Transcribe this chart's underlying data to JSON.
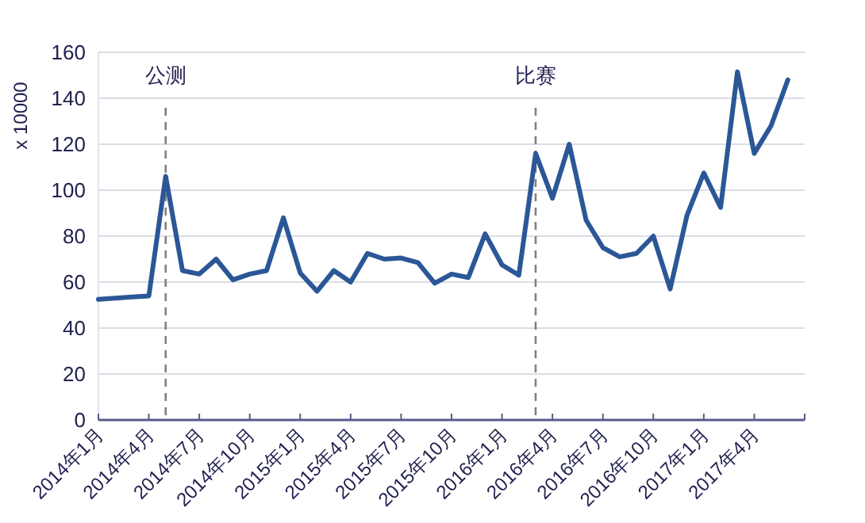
{
  "chart_data": {
    "type": "line",
    "ylabel": "x 10000",
    "x": [
      "2014-01",
      "2014-02",
      "2014-03",
      "2014-04",
      "2014-05",
      "2014-06",
      "2014-07",
      "2014-08",
      "2014-09",
      "2014-10",
      "2014-11",
      "2014-12",
      "2015-01",
      "2015-02",
      "2015-03",
      "2015-04",
      "2015-05",
      "2015-06",
      "2015-07",
      "2015-08",
      "2015-09",
      "2015-10",
      "2015-11",
      "2015-12",
      "2016-01",
      "2016-02",
      "2016-03",
      "2016-04",
      "2016-05",
      "2016-06",
      "2016-07",
      "2016-08",
      "2016-09",
      "2016-10",
      "2016-11",
      "2016-12",
      "2017-01",
      "2017-02",
      "2017-03",
      "2017-04",
      "2017-05",
      "2017-06"
    ],
    "series": [
      {
        "color": "#2b5797",
        "values": [
          52.5,
          53,
          53.5,
          54,
          106,
          65,
          63.5,
          70,
          61,
          63.5,
          65,
          88,
          64,
          56,
          65,
          60,
          72.5,
          70,
          70.5,
          68.5,
          59.5,
          63.5,
          62,
          81,
          67.5,
          63,
          116,
          96.5,
          120,
          87,
          75,
          71,
          72.5,
          80,
          57,
          89,
          107.5,
          92.5,
          151.5,
          116,
          128,
          148
        ]
      }
    ],
    "xlim": [
      "2014-01",
      "2017-07"
    ],
    "xticks": [
      {
        "value": "2014-01",
        "label": "2014年1月"
      },
      {
        "value": "2014-04",
        "label": "2014年4月"
      },
      {
        "value": "2014-07",
        "label": "2014年7月"
      },
      {
        "value": "2014-10",
        "label": "2014年10月"
      },
      {
        "value": "2015-01",
        "label": "2015年1月"
      },
      {
        "value": "2015-04",
        "label": "2015年4月"
      },
      {
        "value": "2015-07",
        "label": "2015年7月"
      },
      {
        "value": "2015-10",
        "label": "2015年10月"
      },
      {
        "value": "2016-01",
        "label": "2016年1月"
      },
      {
        "value": "2016-04",
        "label": "2016年4月"
      },
      {
        "value": "2016-07",
        "label": "2016年7月"
      },
      {
        "value": "2016-10",
        "label": "2016年10月"
      },
      {
        "value": "2017-01",
        "label": "2017年1月"
      },
      {
        "value": "2017-04",
        "label": "2017年4月"
      },
      {
        "value": "2017-07",
        "label": null
      }
    ],
    "ylim": [
      0,
      160
    ],
    "yticks": [
      0,
      20,
      40,
      60,
      80,
      100,
      120,
      140,
      160
    ],
    "grid": "y",
    "marker": "none",
    "line_style": "solid",
    "ref_lines": [
      {
        "axis": "x",
        "value": "2014-05",
        "label": "公测",
        "color": "#808080",
        "line_style": "dashed"
      },
      {
        "axis": "x",
        "value": "2016-03",
        "label": "比赛",
        "color": "#808080",
        "line_style": "dashed"
      }
    ]
  }
}
